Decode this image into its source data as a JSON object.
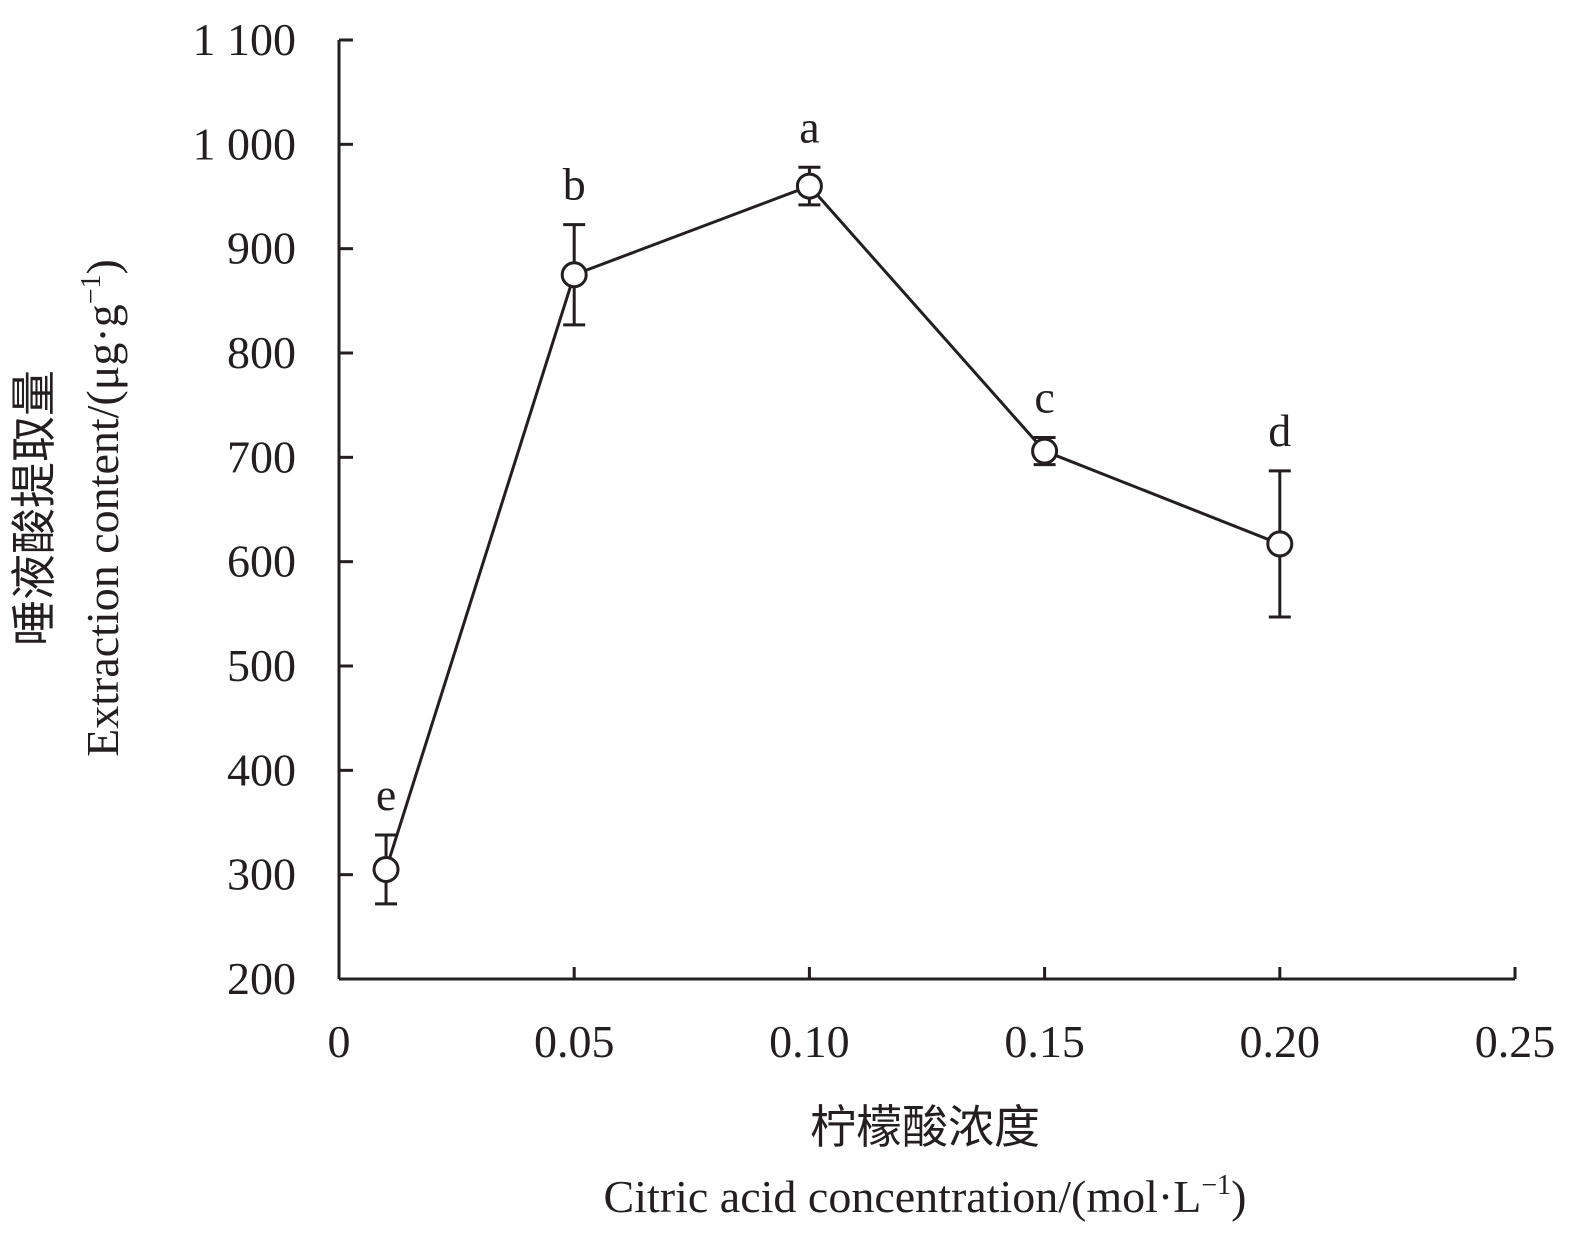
{
  "chart_data": {
    "type": "line",
    "xlabel_cn": "柠檬酸浓度",
    "xlabel_en": "Citric acid concentration/(mol·L",
    "xlabel_en_sup": "−1",
    "xlabel_en_tail": ")",
    "ylabel_cn": "唾液酸提取量",
    "ylabel_en": "Extraction content/(μg·g",
    "ylabel_en_sup": "−1",
    "ylabel_en_tail": ")",
    "xlim": [
      0,
      0.25
    ],
    "ylim": [
      200,
      1100
    ],
    "x_ticks": [
      {
        "value": 0,
        "label": "0"
      },
      {
        "value": 0.05,
        "label": "0.05"
      },
      {
        "value": 0.1,
        "label": "0.10"
      },
      {
        "value": 0.15,
        "label": "0.15"
      },
      {
        "value": 0.2,
        "label": "0.20"
      },
      {
        "value": 0.25,
        "label": "0.25"
      }
    ],
    "y_ticks": [
      {
        "value": 200,
        "label": "200"
      },
      {
        "value": 300,
        "label": "300"
      },
      {
        "value": 400,
        "label": "400"
      },
      {
        "value": 500,
        "label": "500"
      },
      {
        "value": 600,
        "label": "600"
      },
      {
        "value": 700,
        "label": "700"
      },
      {
        "value": 800,
        "label": "800"
      },
      {
        "value": 900,
        "label": "900"
      },
      {
        "value": 1000,
        "label": "1 000"
      },
      {
        "value": 1100,
        "label": "1 100"
      }
    ],
    "grid": false,
    "marker": "open-circle",
    "line_color": "#231f20",
    "points": [
      {
        "x": 0.01,
        "y": 305,
        "error": 33,
        "sig": "e"
      },
      {
        "x": 0.05,
        "y": 875,
        "error": 48,
        "sig": "b"
      },
      {
        "x": 0.1,
        "y": 960,
        "error": 18,
        "sig": "a"
      },
      {
        "x": 0.15,
        "y": 706,
        "error": 13,
        "sig": "c"
      },
      {
        "x": 0.2,
        "y": 617,
        "error": 70,
        "sig": "d"
      }
    ]
  }
}
